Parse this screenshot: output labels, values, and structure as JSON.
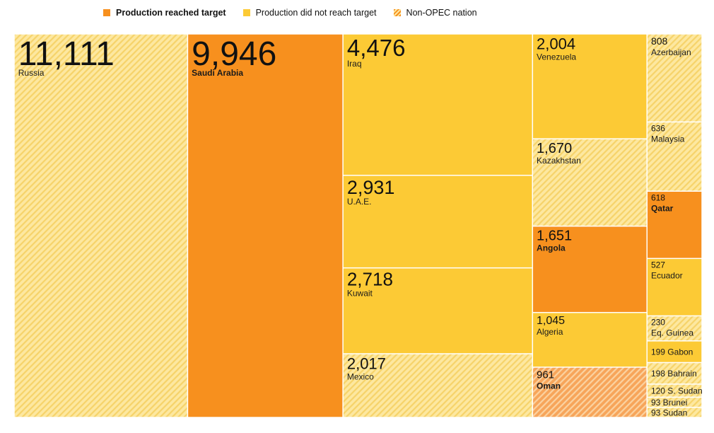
{
  "chart_data": {
    "type": "treemap",
    "unit": "thousand barrels per day",
    "legend": [
      {
        "key": "reached",
        "label": "Production reached target",
        "color": "#f7901e",
        "style": "solid"
      },
      {
        "key": "not_reached",
        "label": "Production did not reach target",
        "color": "#fcca35",
        "style": "solid"
      },
      {
        "key": "non_opec",
        "label": "Non-OPEC nation",
        "color": "#f7901e",
        "style": "hatched"
      }
    ],
    "colors": {
      "reached": "#f7901e",
      "not_reached": "#fcca35",
      "hatch_line": "#ffffff",
      "non_opec_base": "#fde8a0",
      "non_opec_stripe": "#f6d36a",
      "non_opec_reached_base": "#f7a55a",
      "non_opec_reached_stripe": "#fbd2a0"
    },
    "items": [
      {
        "name": "Russia",
        "display_value": "11,111",
        "value": 11111,
        "status": "not_reached",
        "non_opec": true
      },
      {
        "name": "Saudi Arabia",
        "display_value": "9,946",
        "value": 9946,
        "status": "reached",
        "non_opec": false
      },
      {
        "name": "Iraq",
        "display_value": "4,476",
        "value": 4476,
        "status": "not_reached",
        "non_opec": false
      },
      {
        "name": "U.A.E.",
        "display_value": "2,931",
        "value": 2931,
        "status": "not_reached",
        "non_opec": false
      },
      {
        "name": "Kuwait",
        "display_value": "2,718",
        "value": 2718,
        "status": "not_reached",
        "non_opec": false
      },
      {
        "name": "Mexico",
        "display_value": "2,017",
        "value": 2017,
        "status": "not_reached",
        "non_opec": true
      },
      {
        "name": "Venezuela",
        "display_value": "2,004",
        "value": 2004,
        "status": "not_reached",
        "non_opec": false
      },
      {
        "name": "Kazakhstan",
        "display_value": "1,670",
        "value": 1670,
        "status": "not_reached",
        "non_opec": true
      },
      {
        "name": "Angola",
        "display_value": "1,651",
        "value": 1651,
        "status": "reached",
        "non_opec": false
      },
      {
        "name": "Algeria",
        "display_value": "1,045",
        "value": 1045,
        "status": "not_reached",
        "non_opec": false
      },
      {
        "name": "Oman",
        "display_value": "961",
        "value": 961,
        "status": "reached",
        "non_opec": true
      },
      {
        "name": "Azerbaijan",
        "display_value": "808",
        "value": 808,
        "status": "not_reached",
        "non_opec": true
      },
      {
        "name": "Malaysia",
        "display_value": "636",
        "value": 636,
        "status": "not_reached",
        "non_opec": true
      },
      {
        "name": "Qatar",
        "display_value": "618",
        "value": 618,
        "status": "reached",
        "non_opec": false
      },
      {
        "name": "Ecuador",
        "display_value": "527",
        "value": 527,
        "status": "not_reached",
        "non_opec": false
      },
      {
        "name": "Eq. Guinea",
        "display_value": "230",
        "value": 230,
        "status": "not_reached",
        "non_opec": true
      },
      {
        "name": "Gabon",
        "display_value": "199",
        "value": 199,
        "status": "not_reached",
        "non_opec": false
      },
      {
        "name": "Bahrain",
        "display_value": "198",
        "value": 198,
        "status": "not_reached",
        "non_opec": true
      },
      {
        "name": "S. Sudan",
        "display_value": "120",
        "value": 120,
        "status": "not_reached",
        "non_opec": true
      },
      {
        "name": "Brunei",
        "display_value": "93",
        "value": 93,
        "status": "not_reached",
        "non_opec": true
      },
      {
        "name": "Sudan",
        "display_value": "93",
        "value": 93,
        "status": "not_reached",
        "non_opec": true
      }
    ]
  }
}
